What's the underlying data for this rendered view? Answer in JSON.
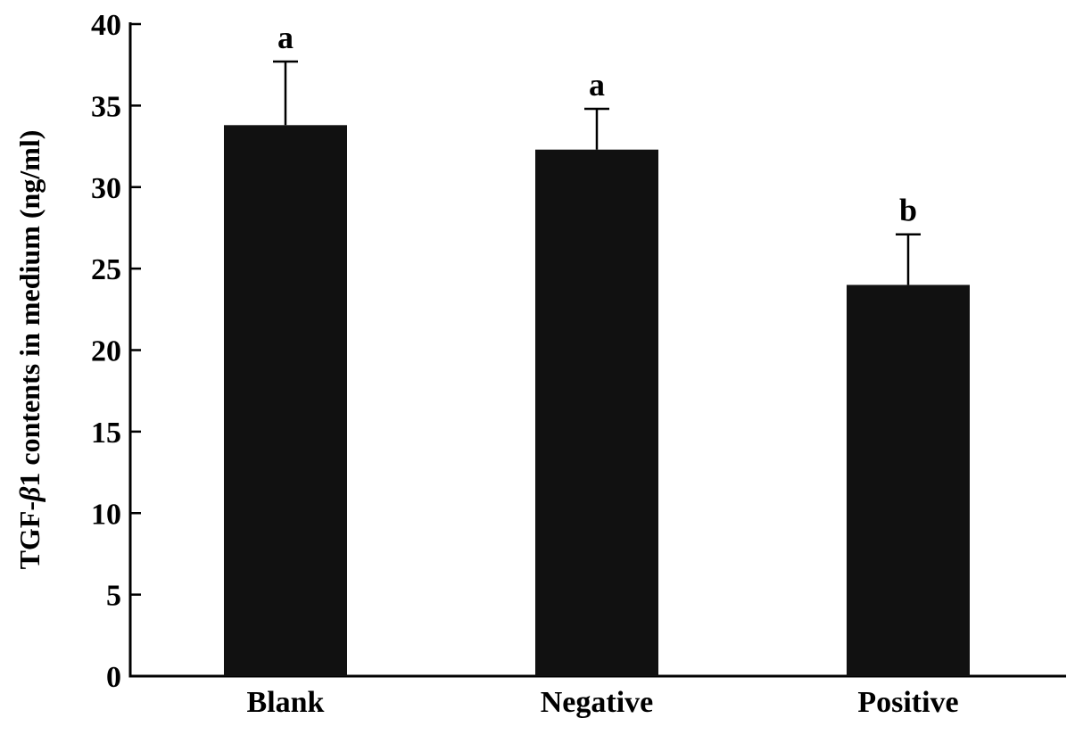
{
  "chart_data": {
    "type": "bar",
    "categories": [
      "Blank",
      "Negative",
      "Positive"
    ],
    "values": [
      33.8,
      32.3,
      24.0
    ],
    "error_upper": [
      3.9,
      2.5,
      3.1
    ],
    "significance_labels": [
      "a",
      "a",
      "b"
    ],
    "ylabel_main": "TGF-",
    "ylabel_symbol": "β",
    "ylabel_rest": "1 contents in medium (ng/ml)",
    "ylim": [
      0,
      40
    ],
    "yticks": [
      "0",
      "5",
      "10",
      "15",
      "20",
      "25",
      "30",
      "35",
      "40"
    ],
    "grid": false,
    "legend": "none",
    "bar_color": "#111111"
  }
}
